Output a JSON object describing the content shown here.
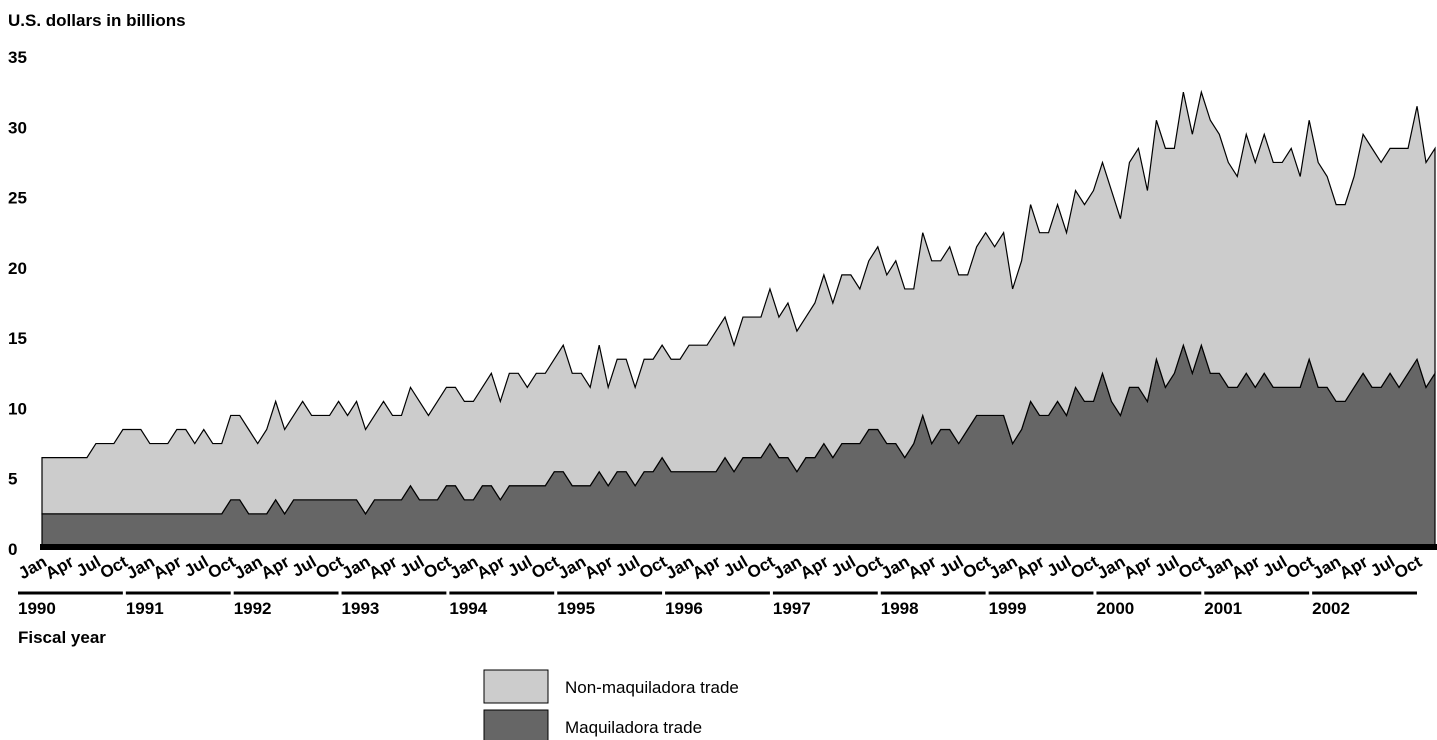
{
  "chart_data": {
    "type": "stacked_area",
    "y_label": "U.S. dollars in billions",
    "x_label": "Fiscal year",
    "ylim": [
      0,
      35
    ],
    "yticks": [
      0,
      5,
      10,
      15,
      20,
      25,
      30,
      35
    ],
    "categories": [
      "Jan",
      null,
      null,
      "Apr",
      null,
      null,
      "Jul",
      null,
      null,
      "Oct",
      null,
      null,
      "Jan",
      null,
      null,
      "Apr",
      null,
      null,
      "Jul",
      null,
      null,
      "Oct",
      null,
      null,
      "Jan",
      null,
      null,
      "Apr",
      null,
      null,
      "Jul",
      null,
      null,
      "Oct",
      null,
      null,
      "Jan",
      null,
      null,
      "Apr",
      null,
      null,
      "Jul",
      null,
      null,
      "Oct",
      null,
      null,
      "Jan",
      null,
      null,
      "Apr",
      null,
      null,
      "Jul",
      null,
      null,
      "Oct",
      null,
      null,
      "Jan",
      null,
      null,
      "Apr",
      null,
      null,
      "Jul",
      null,
      null,
      "Oct",
      null,
      null,
      "Jan",
      null,
      null,
      "Apr",
      null,
      null,
      "Jul",
      null,
      null,
      "Oct",
      null,
      null,
      "Jan",
      null,
      null,
      "Apr",
      null,
      null,
      "Jul",
      null,
      null,
      "Oct",
      null,
      null,
      "Jan",
      null,
      null,
      "Apr",
      null,
      null,
      "Jul",
      null,
      null,
      "Oct",
      null,
      null,
      "Jan",
      null,
      null,
      "Apr",
      null,
      null,
      "Jul",
      null,
      null,
      "Oct",
      null,
      null,
      "Jan",
      null,
      null,
      "Apr",
      null,
      null,
      "Jul",
      null,
      null,
      "Oct",
      null,
      null,
      "Jan",
      null,
      null,
      "Apr",
      null,
      null,
      "Jul",
      null,
      null,
      "Oct",
      null,
      null,
      "Jan",
      null,
      null,
      "Apr",
      null,
      null,
      "Jul",
      null,
      null,
      "Oct",
      null,
      null
    ],
    "x_groups": [
      1990,
      1991,
      1992,
      1993,
      1994,
      1995,
      1996,
      1997,
      1998,
      1999,
      2000,
      2001,
      2002
    ],
    "series": [
      {
        "name": "Non-maquiladora trade",
        "color": "#cccccc",
        "values": [
          4,
          4,
          4,
          4,
          4,
          4,
          5,
          5,
          5,
          6,
          6,
          6,
          5,
          5,
          5,
          6,
          6,
          5,
          6,
          5,
          5,
          6,
          6,
          6,
          5,
          6,
          7,
          6,
          6,
          7,
          6,
          6,
          6,
          7,
          6,
          7,
          6,
          6,
          7,
          6,
          6,
          7,
          7,
          6,
          7,
          7,
          7,
          7,
          7,
          7,
          8,
          7,
          8,
          8,
          7,
          8,
          8,
          8,
          9,
          8,
          8,
          7,
          9,
          7,
          8,
          8,
          7,
          8,
          8,
          8,
          8,
          8,
          9,
          9,
          9,
          10,
          10,
          9,
          10,
          10,
          10,
          11,
          10,
          11,
          10,
          10,
          11,
          12,
          11,
          12,
          12,
          11,
          12,
          13,
          12,
          13,
          12,
          11,
          13,
          13,
          12,
          13,
          12,
          11,
          12,
          13,
          12,
          13,
          11,
          12,
          14,
          13,
          13,
          14,
          13,
          14,
          14,
          15,
          15,
          15,
          14,
          16,
          17,
          15,
          17,
          17,
          16,
          18,
          17,
          18,
          18,
          17,
          16,
          15,
          17,
          16,
          17,
          16,
          16,
          17,
          15,
          17,
          16,
          15,
          14,
          14,
          15,
          17,
          17,
          16,
          16,
          17,
          16,
          18,
          16,
          16
        ]
      },
      {
        "name": "Maquiladora trade",
        "color": "#666666",
        "values": [
          2.5,
          2.5,
          2.5,
          2.5,
          2.5,
          2.5,
          2.5,
          2.5,
          2.5,
          2.5,
          2.5,
          2.5,
          2.5,
          2.5,
          2.5,
          2.5,
          2.5,
          2.5,
          2.5,
          2.5,
          2.5,
          3.5,
          3.5,
          2.5,
          2.5,
          2.5,
          3.5,
          2.5,
          3.5,
          3.5,
          3.5,
          3.5,
          3.5,
          3.5,
          3.5,
          3.5,
          2.5,
          3.5,
          3.5,
          3.5,
          3.5,
          4.5,
          3.5,
          3.5,
          3.5,
          4.5,
          4.5,
          3.5,
          3.5,
          4.5,
          4.5,
          3.5,
          4.5,
          4.5,
          4.5,
          4.5,
          4.5,
          5.5,
          5.5,
          4.5,
          4.5,
          4.5,
          5.5,
          4.5,
          5.5,
          5.5,
          4.5,
          5.5,
          5.5,
          6.5,
          5.5,
          5.5,
          5.5,
          5.5,
          5.5,
          5.5,
          6.5,
          5.5,
          6.5,
          6.5,
          6.5,
          7.5,
          6.5,
          6.5,
          5.5,
          6.5,
          6.5,
          7.5,
          6.5,
          7.5,
          7.5,
          7.5,
          8.5,
          8.5,
          7.5,
          7.5,
          6.5,
          7.5,
          9.5,
          7.5,
          8.5,
          8.5,
          7.5,
          8.5,
          9.5,
          9.5,
          9.5,
          9.5,
          7.5,
          8.5,
          10.5,
          9.5,
          9.5,
          10.5,
          9.5,
          11.5,
          10.5,
          10.5,
          12.5,
          10.5,
          9.5,
          11.5,
          11.5,
          10.5,
          13.5,
          11.5,
          12.5,
          14.5,
          12.5,
          14.5,
          12.5,
          12.5,
          11.5,
          11.5,
          12.5,
          11.5,
          12.5,
          11.5,
          11.5,
          11.5,
          11.5,
          13.5,
          11.5,
          11.5,
          10.5,
          10.5,
          11.5,
          12.5,
          11.5,
          11.5,
          12.5,
          11.5,
          12.5,
          13.5,
          11.5,
          12.5
        ]
      }
    ]
  }
}
